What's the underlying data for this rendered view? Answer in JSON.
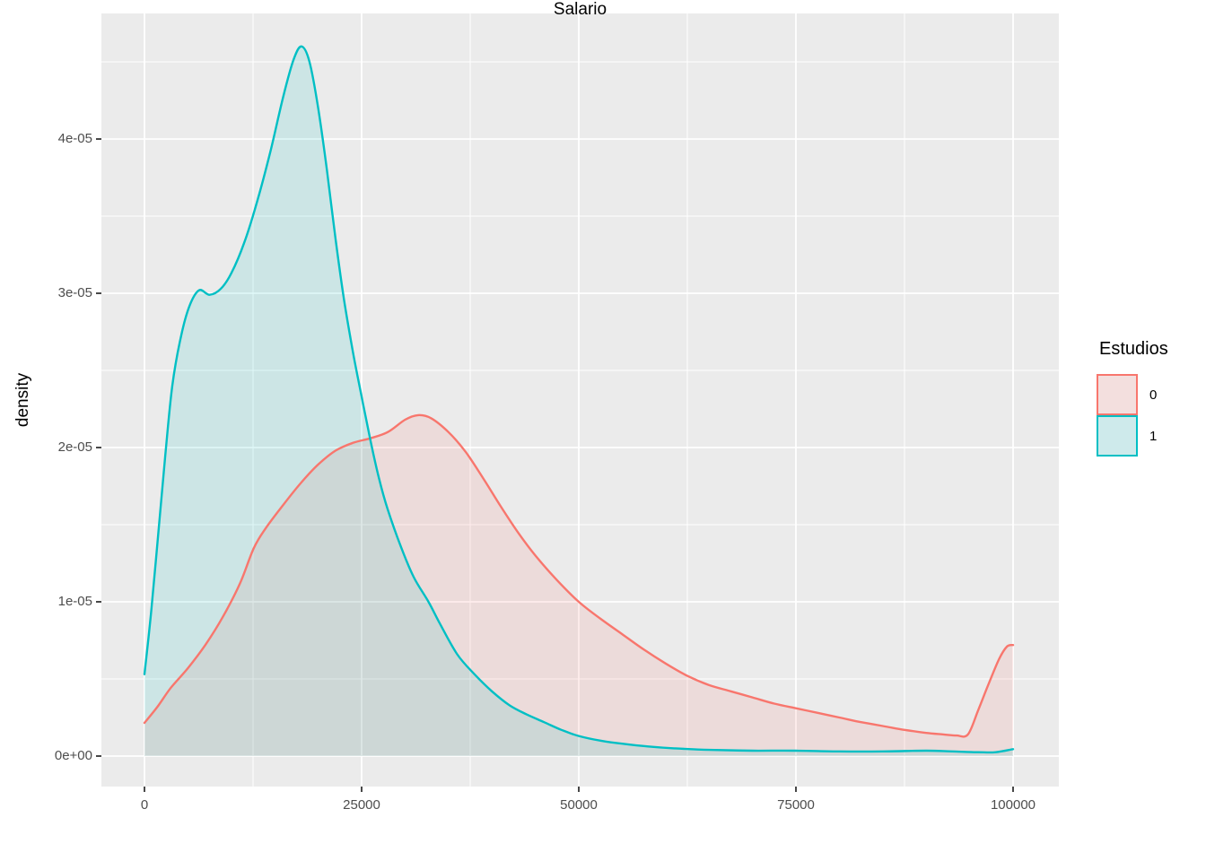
{
  "figure": {
    "background": "#FFFFFF",
    "panel_background": "#EBEBEB",
    "grid_color": "#FFFFFF",
    "tick_mark_color": "#333333",
    "tick_label_color": "#4D4D4D"
  },
  "axes": {
    "x_title": "Salario",
    "y_title": "density"
  },
  "legend": {
    "title": "Estudios",
    "key_background": "#F2F2F2",
    "entries": [
      {
        "label": "0",
        "color": "#F8766D"
      },
      {
        "label": "1",
        "color": "#00BFC4"
      }
    ]
  },
  "chart_data": {
    "type": "area",
    "subtype": "kernel-density",
    "title": "",
    "xlabel": "Salario",
    "ylabel": "density",
    "legend_title": "Estudios",
    "legend_position": "right",
    "grid": "on",
    "xlim": [
      -4950,
      105000
    ],
    "ylim": [
      -2.3e-06,
      4.82e-05
    ],
    "x_ticks": {
      "values": [
        0,
        25000,
        50000,
        75000,
        100000
      ],
      "labels": [
        "0",
        "25000",
        "50000",
        "75000",
        "100000"
      ]
    },
    "y_ticks": {
      "values": [
        0,
        1e-05,
        2e-05,
        3e-05,
        4e-05
      ],
      "labels": [
        "0e+00",
        "1e-05",
        "2e-05",
        "3e-05",
        "4e-05"
      ]
    },
    "x_minor": [
      12500,
      37500,
      62500,
      87500
    ],
    "y_minor": [
      5e-06,
      1.5e-05,
      2.5e-05,
      3.5e-05,
      4.5e-05
    ],
    "series": [
      {
        "name": "0",
        "color": "#F8766D",
        "fill_opacity": 0.13,
        "points": [
          [
            0,
            2.15e-06
          ],
          [
            1500,
            3.2e-06
          ],
          [
            3000,
            4.4e-06
          ],
          [
            5000,
            5.7e-06
          ],
          [
            7000,
            7.2e-06
          ],
          [
            9000,
            9e-06
          ],
          [
            11000,
            1.12e-05
          ],
          [
            12600,
            1.35e-05
          ],
          [
            14000,
            1.48e-05
          ],
          [
            16000,
            1.63e-05
          ],
          [
            18000,
            1.77e-05
          ],
          [
            20000,
            1.89e-05
          ],
          [
            22000,
            1.98e-05
          ],
          [
            24000,
            2.03e-05
          ],
          [
            26000,
            2.06e-05
          ],
          [
            28000,
            2.1e-05
          ],
          [
            30000,
            2.18e-05
          ],
          [
            31500,
            2.21e-05
          ],
          [
            33000,
            2.19e-05
          ],
          [
            35000,
            2.1e-05
          ],
          [
            37000,
            1.97e-05
          ],
          [
            39000,
            1.8e-05
          ],
          [
            41000,
            1.62e-05
          ],
          [
            43000,
            1.45e-05
          ],
          [
            45000,
            1.3e-05
          ],
          [
            47500,
            1.14e-05
          ],
          [
            50000,
            1e-05
          ],
          [
            52500,
            8.9e-06
          ],
          [
            55000,
            7.9e-06
          ],
          [
            57500,
            6.9e-06
          ],
          [
            60000,
            6e-06
          ],
          [
            62500,
            5.2e-06
          ],
          [
            65000,
            4.6e-06
          ],
          [
            67500,
            4.2e-06
          ],
          [
            70000,
            3.8e-06
          ],
          [
            72500,
            3.4e-06
          ],
          [
            75000,
            3.1e-06
          ],
          [
            77500,
            2.8e-06
          ],
          [
            80000,
            2.5e-06
          ],
          [
            82500,
            2.2e-06
          ],
          [
            85000,
            1.95e-06
          ],
          [
            87500,
            1.7e-06
          ],
          [
            90000,
            1.5e-06
          ],
          [
            92000,
            1.4e-06
          ],
          [
            93500,
            1.33e-06
          ],
          [
            94800,
            1.4e-06
          ],
          [
            96000,
            3e-06
          ],
          [
            97200,
            4.7e-06
          ],
          [
            98400,
            6.3e-06
          ],
          [
            99300,
            7.1e-06
          ],
          [
            100000,
            7.2e-06
          ]
        ]
      },
      {
        "name": "1",
        "color": "#00BFC4",
        "fill_opacity": 0.13,
        "points": [
          [
            0,
            5.3e-06
          ],
          [
            800,
            9.5e-06
          ],
          [
            1600,
            1.45e-05
          ],
          [
            2400,
            1.95e-05
          ],
          [
            3200,
            2.4e-05
          ],
          [
            4200,
            2.72e-05
          ],
          [
            5200,
            2.92e-05
          ],
          [
            6300,
            3.02e-05
          ],
          [
            7500,
            2.99e-05
          ],
          [
            8800,
            3.03e-05
          ],
          [
            10000,
            3.13e-05
          ],
          [
            11500,
            3.33e-05
          ],
          [
            13000,
            3.6e-05
          ],
          [
            14500,
            3.92e-05
          ],
          [
            16000,
            4.28e-05
          ],
          [
            17200,
            4.52e-05
          ],
          [
            18100,
            4.6e-05
          ],
          [
            19000,
            4.5e-05
          ],
          [
            20000,
            4.2e-05
          ],
          [
            21000,
            3.8e-05
          ],
          [
            22000,
            3.35e-05
          ],
          [
            23000,
            2.95e-05
          ],
          [
            24000,
            2.62e-05
          ],
          [
            25000,
            2.33e-05
          ],
          [
            26000,
            2.05e-05
          ],
          [
            27000,
            1.8e-05
          ],
          [
            28000,
            1.6e-05
          ],
          [
            29500,
            1.36e-05
          ],
          [
            31000,
            1.16e-05
          ],
          [
            32700,
            1e-05
          ],
          [
            34000,
            8.6e-06
          ],
          [
            36000,
            6.6e-06
          ],
          [
            38000,
            5.3e-06
          ],
          [
            40000,
            4.2e-06
          ],
          [
            42000,
            3.3e-06
          ],
          [
            44000,
            2.7e-06
          ],
          [
            46000,
            2.2e-06
          ],
          [
            48000,
            1.7e-06
          ],
          [
            50000,
            1.3e-06
          ],
          [
            52500,
            1e-06
          ],
          [
            55000,
            8e-07
          ],
          [
            58000,
            6.2e-07
          ],
          [
            61000,
            5e-07
          ],
          [
            65000,
            4e-07
          ],
          [
            70000,
            3.5e-07
          ],
          [
            75000,
            3.5e-07
          ],
          [
            80000,
            3e-07
          ],
          [
            85000,
            3e-07
          ],
          [
            90000,
            3.5e-07
          ],
          [
            93000,
            3e-07
          ],
          [
            96000,
            2.5e-07
          ],
          [
            98000,
            2.5e-07
          ],
          [
            100000,
            4.5e-07
          ]
        ]
      }
    ]
  }
}
